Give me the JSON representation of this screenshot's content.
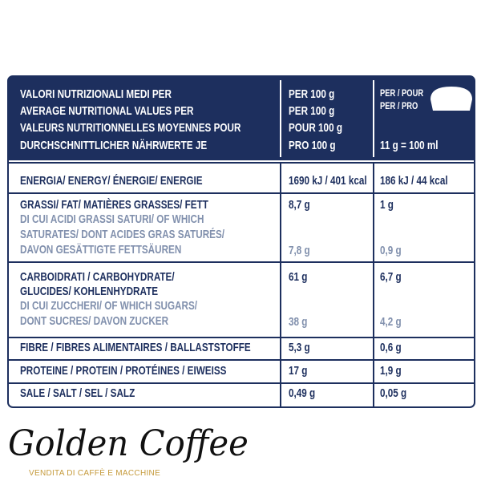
{
  "header": {
    "col1": [
      "VALORI NUTRIZIONALI MEDI PER",
      "AVERAGE NUTRITIONAL VALUES PER",
      "VALEURS NUTRITIONNELLES MOYENNES POUR",
      "DURCHSCHNITTLICHER NÄHRWERTE JE"
    ],
    "col2": [
      "PER 100 g",
      "PER 100 g",
      "POUR 100 g",
      "PRO 100 g"
    ],
    "col3": [
      "PER / POUR",
      "PER / PRO",
      "11 g = 100 ml"
    ]
  },
  "rows": [
    {
      "label": [
        "ENERGIA/ ENERGY/ ÉNERGIE/ ENERGIE"
      ],
      "per100": "1690 kJ / 401 kcal",
      "portion": "186 kJ / 44 kcal"
    },
    {
      "label": [
        "GRASSI/ FAT/ MATIÈRES GRASSES/ FETT"
      ],
      "per100": "8,7 g",
      "portion": "1 g",
      "sub_label": [
        "DI CUI ACIDI GRASSI SATURI/ OF WHICH",
        "SATURATES/ DONT ACIDES GRAS SATURÉS/",
        "DAVON GESÄTTIGTE FETTSÄUREN"
      ],
      "sub_per100": "7,8 g",
      "sub_portion": "0,9 g"
    },
    {
      "label": [
        "CARBOIDRATI / CARBOHYDRATE/",
        "GLUCIDES/ KOHLENHYDRATE"
      ],
      "per100": "61 g",
      "portion": "6,7 g",
      "sub_label": [
        "DI CUI ZUCCHERI/ OF WHICH SUGARS/",
        "DONT SUCRES/ DAVON ZUCKER"
      ],
      "sub_per100": "38 g",
      "sub_portion": "4,2 g"
    },
    {
      "label": [
        "FIBRE / FIBRES ALIMENTAIRES / BALLASTSTOFFE"
      ],
      "per100": "5,3 g",
      "portion": "0,6 g"
    },
    {
      "label": [
        "PROTEINE / PROTEIN / PROTÉINES / EIWEISS"
      ],
      "per100": "17 g",
      "portion": "1,9 g"
    },
    {
      "label": [
        "SALE / SALT / SEL / SALZ"
      ],
      "per100": "0,49 g",
      "portion": "0,05 g"
    }
  ],
  "logo": {
    "name": "Golden Coffee",
    "tagline": "VENDITA DI CAFFÈ E MACCHINE"
  }
}
